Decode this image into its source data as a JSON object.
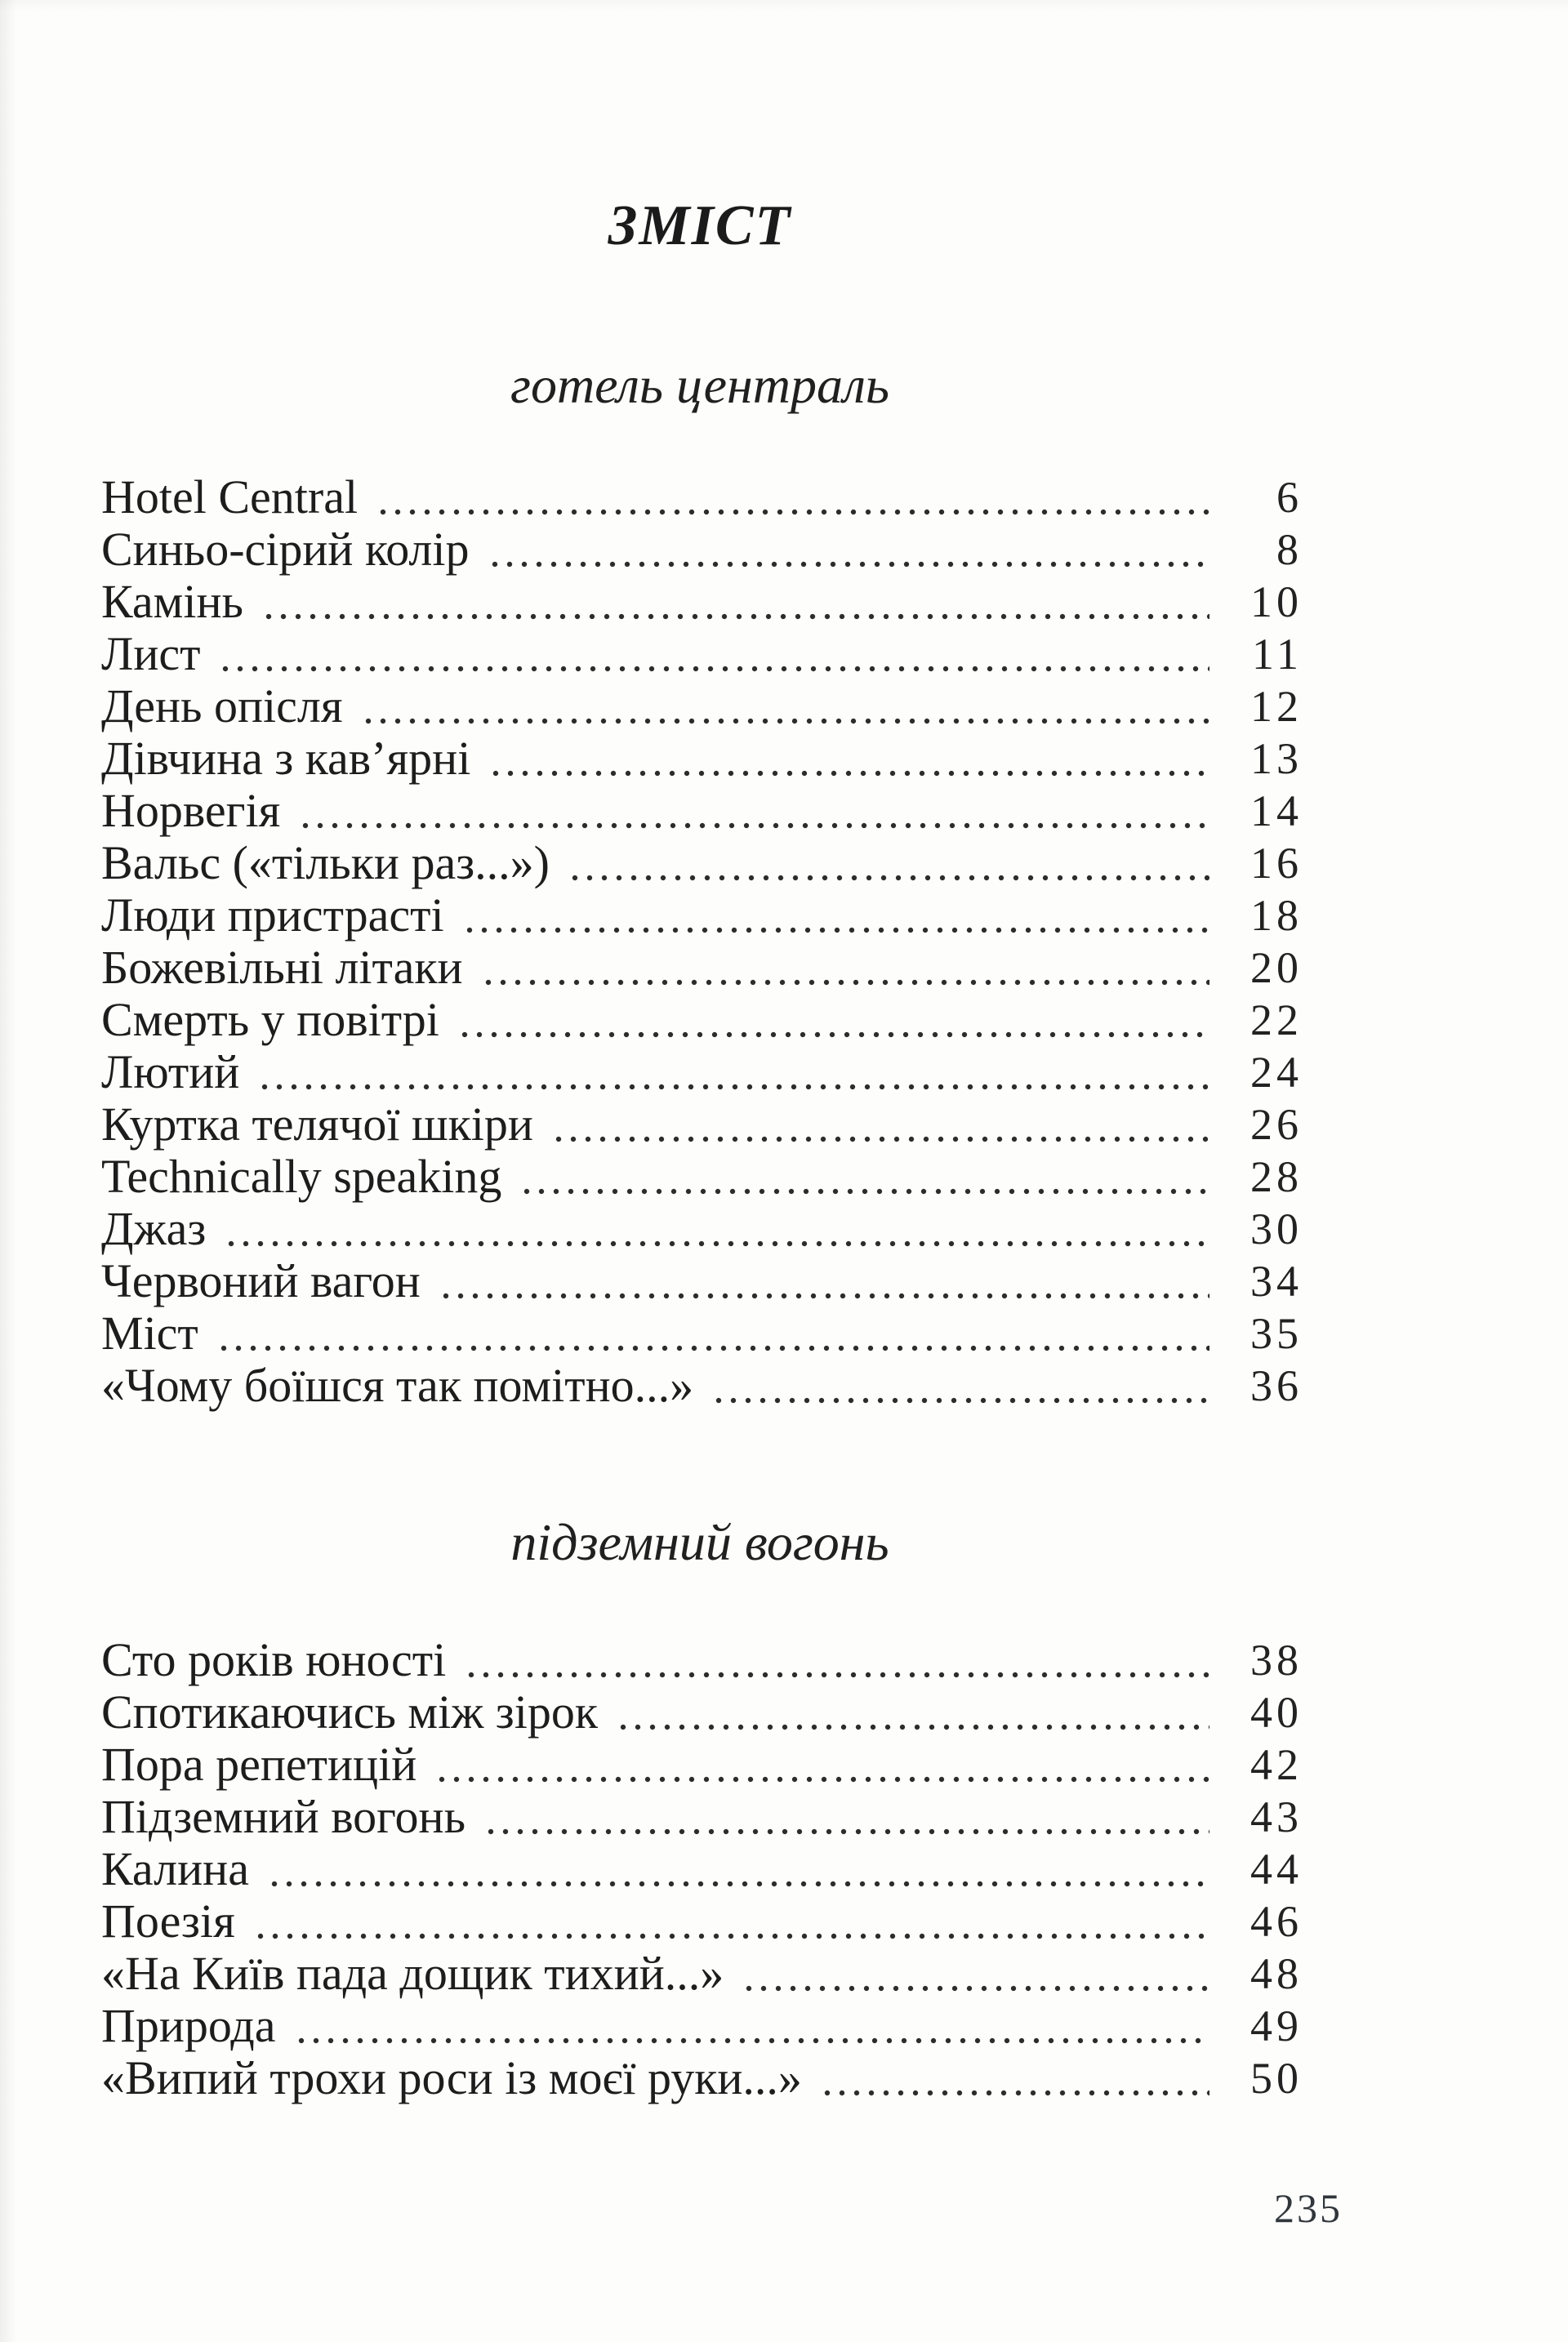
{
  "page": {
    "title": "ЗМІСТ",
    "page_number": "235"
  },
  "colors": {
    "paper": "#fdfdfc",
    "text": "#1d1d1d"
  },
  "sections": [
    {
      "heading": "готель централь",
      "entries": [
        {
          "title": "Hotel Central",
          "page": "6"
        },
        {
          "title": "Синьо-сірий колір",
          "page": "8"
        },
        {
          "title": "Камінь",
          "page": "10"
        },
        {
          "title": "Лист",
          "page": "11"
        },
        {
          "title": "День опісля",
          "page": "12"
        },
        {
          "title": "Дівчина з кав’ярні",
          "page": "13"
        },
        {
          "title": "Норвегія",
          "page": "14"
        },
        {
          "title": "Вальс («тільки раз...»)",
          "page": "16"
        },
        {
          "title": "Люди пристрасті",
          "page": "18"
        },
        {
          "title": "Божевільні літаки",
          "page": "20"
        },
        {
          "title": "Смерть у повітрі",
          "page": "22"
        },
        {
          "title": "Лютий",
          "page": "24"
        },
        {
          "title": "Куртка телячої шкіри",
          "page": "26"
        },
        {
          "title": "Technically speaking",
          "page": "28"
        },
        {
          "title": "Джаз",
          "page": "30"
        },
        {
          "title": "Червоний вагон",
          "page": "34"
        },
        {
          "title": "Міст",
          "page": "35"
        },
        {
          "title": "«Чому боїшся так помітно...»",
          "page": "36"
        }
      ]
    },
    {
      "heading": "підземний вогонь",
      "entries": [
        {
          "title": "Сто років юності",
          "page": "38"
        },
        {
          "title": "Спотикаючись між зірок",
          "page": "40"
        },
        {
          "title": "Пора репетицій",
          "page": "42"
        },
        {
          "title": "Підземний вогонь",
          "page": "43"
        },
        {
          "title": "Калина",
          "page": "44"
        },
        {
          "title": "Поезія",
          "page": "46"
        },
        {
          "title": "«На Київ пада дощик тихий...»",
          "page": "48"
        },
        {
          "title": "Природа",
          "page": "49"
        },
        {
          "title": "«Випий трохи роси із моєї руки...»",
          "page": "50"
        }
      ]
    }
  ]
}
